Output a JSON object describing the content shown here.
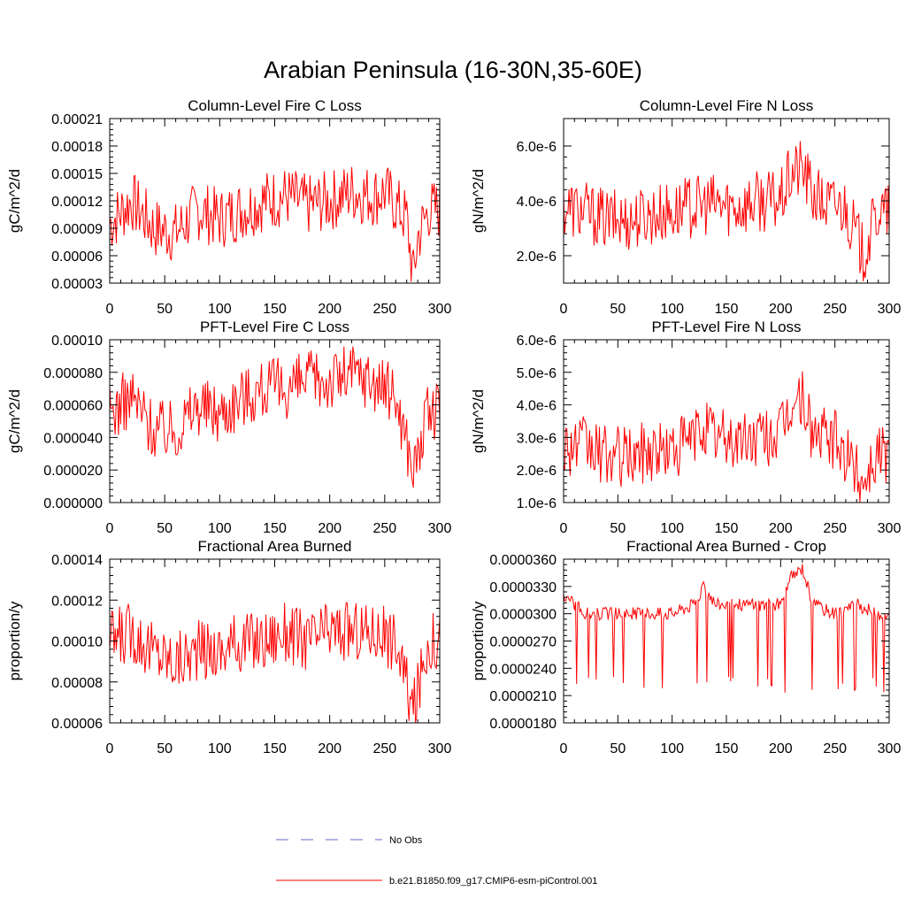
{
  "figure_title": "Arabian Peninsula (16-30N,35-60E)",
  "colors": {
    "series": "#ff0000",
    "no_obs": "#6666cc",
    "axes": "#000000"
  },
  "legend": {
    "items": [
      {
        "label": "No Obs",
        "style": "dashed",
        "color": "#6666cc"
      },
      {
        "label": "b.e21.B1850.f09_g17.CMIP6-esm-piControl.001",
        "style": "solid",
        "color": "#ff0000"
      }
    ]
  },
  "chart_data": [
    {
      "type": "line",
      "title": "Column-Level Fire C Loss",
      "ylabel": "gC/m^2/d",
      "xlim": [
        0,
        300
      ],
      "ylim": [
        3e-05,
        0.00021
      ],
      "xticks": [
        0,
        50,
        100,
        150,
        200,
        250,
        300
      ],
      "xtick_labels": [
        "0",
        "50",
        "100",
        "150",
        "200",
        "250",
        "300"
      ],
      "yticks": [
        3e-05,
        6e-05,
        9e-05,
        0.00012,
        0.00015,
        0.00018,
        0.00021
      ],
      "ytick_labels": [
        "0.00003",
        "0.00006",
        "0.00009",
        "0.00012",
        "0.00015",
        "0.00018",
        "0.00021"
      ],
      "series": [
        {
          "name": "b.e21.B1850.f09_g17.CMIP6-esm-piControl.001",
          "x": [
            0,
            20,
            40,
            60,
            80,
            100,
            120,
            140,
            160,
            180,
            200,
            220,
            240,
            250,
            260,
            270,
            276,
            280,
            290,
            300
          ],
          "values": [
            9.5e-05,
            0.00012,
            9e-05,
            8.5e-05,
            0.00011,
            0.0001,
            0.00011,
            0.00012,
            0.000125,
            0.000115,
            0.00012,
            0.00013,
            0.000125,
            0.00013,
            0.000115,
            0.0001,
            3.5e-05,
            8e-05,
            0.00011,
            0.00011
          ]
        }
      ]
    },
    {
      "type": "line",
      "title": "Column-Level Fire N Loss",
      "ylabel": "gN/m^2/d",
      "xlim": [
        0,
        300
      ],
      "ylim": [
        1e-06,
        7e-06
      ],
      "xticks": [
        0,
        50,
        100,
        150,
        200,
        250,
        300
      ],
      "xtick_labels": [
        "0",
        "50",
        "100",
        "150",
        "200",
        "250",
        "300"
      ],
      "yticks": [
        2e-06,
        4e-06,
        6e-06
      ],
      "ytick_labels": [
        "2.0e-6",
        "4.0e-6",
        "6.0e-6"
      ],
      "series": [
        {
          "name": "b.e21.B1850.f09_g17.CMIP6-esm-piControl.001",
          "x": [
            0,
            20,
            40,
            60,
            80,
            100,
            120,
            140,
            160,
            180,
            200,
            210,
            220,
            230,
            240,
            260,
            276,
            290,
            300
          ],
          "values": [
            3.8e-06,
            3.6e-06,
            3.3e-06,
            3.3e-06,
            3.5e-06,
            3.6e-06,
            3.8e-06,
            3.9e-06,
            3.8e-06,
            4e-06,
            4e-06,
            5e-06,
            5.2e-06,
            4.2e-06,
            3.9e-06,
            3.8e-06,
            2e-06,
            3.6e-06,
            3.5e-06
          ]
        }
      ]
    },
    {
      "type": "line",
      "title": "PFT-Level Fire C Loss",
      "ylabel": "gC/m^2/d",
      "xlim": [
        0,
        300
      ],
      "ylim": [
        0.0,
        0.0001
      ],
      "xticks": [
        0,
        50,
        100,
        150,
        200,
        250,
        300
      ],
      "xtick_labels": [
        "0",
        "50",
        "100",
        "150",
        "200",
        "250",
        "300"
      ],
      "yticks": [
        0.0,
        2e-05,
        4e-05,
        6e-05,
        8e-05,
        0.0001
      ],
      "ytick_labels": [
        "0.000000",
        "0.000020",
        "0.000040",
        "0.000060",
        "0.000080",
        "0.00010"
      ],
      "series": [
        {
          "name": "b.e21.B1850.f09_g17.CMIP6-esm-piControl.001",
          "x": [
            0,
            20,
            40,
            60,
            80,
            100,
            120,
            140,
            160,
            180,
            200,
            220,
            240,
            260,
            276,
            290,
            300
          ],
          "values": [
            5.5e-05,
            6.5e-05,
            4.5e-05,
            4.5e-05,
            6e-05,
            5.5e-05,
            6.5e-05,
            7e-05,
            7e-05,
            7.5e-05,
            7.5e-05,
            8e-05,
            7.5e-05,
            6.5e-05,
            2e-05,
            5.5e-05,
            5.5e-05
          ]
        }
      ]
    },
    {
      "type": "line",
      "title": "PFT-Level Fire N Loss",
      "ylabel": "gN/m^2/d",
      "xlim": [
        0,
        300
      ],
      "ylim": [
        1e-06,
        6e-06
      ],
      "xticks": [
        0,
        50,
        100,
        150,
        200,
        250,
        300
      ],
      "xtick_labels": [
        "0",
        "50",
        "100",
        "150",
        "200",
        "250",
        "300"
      ],
      "yticks": [
        1e-06,
        2e-06,
        3e-06,
        4e-06,
        5e-06,
        6e-06
      ],
      "ytick_labels": [
        "1.0e-6",
        "2.0e-6",
        "3.0e-6",
        "4.0e-6",
        "5.0e-6",
        "6.0e-6"
      ],
      "series": [
        {
          "name": "b.e21.B1850.f09_g17.CMIP6-esm-piControl.001",
          "x": [
            0,
            20,
            40,
            60,
            80,
            100,
            120,
            130,
            140,
            160,
            180,
            200,
            210,
            220,
            230,
            250,
            276,
            290,
            300
          ],
          "values": [
            2.8e-06,
            2.7e-06,
            2.4e-06,
            2.4e-06,
            2.6e-06,
            2.6e-06,
            3e-06,
            3.4e-06,
            3e-06,
            2.9e-06,
            3e-06,
            3.1e-06,
            4e-06,
            4.2e-06,
            3.1e-06,
            2.9e-06,
            1.7e-06,
            2.6e-06,
            2.5e-06
          ]
        }
      ]
    },
    {
      "type": "line",
      "title": "Fractional Area Burned",
      "ylabel": "proportion/y",
      "xlim": [
        0,
        300
      ],
      "ylim": [
        6e-05,
        0.00014
      ],
      "xticks": [
        0,
        50,
        100,
        150,
        200,
        250,
        300
      ],
      "xtick_labels": [
        "0",
        "50",
        "100",
        "150",
        "200",
        "250",
        "300"
      ],
      "yticks": [
        6e-05,
        8e-05,
        0.0001,
        0.00012,
        0.00014
      ],
      "ytick_labels": [
        "0.00006",
        "0.00008",
        "0.00010",
        "0.00012",
        "0.00014"
      ],
      "series": [
        {
          "name": "b.e21.B1850.f09_g17.CMIP6-esm-piControl.001",
          "x": [
            0,
            20,
            40,
            60,
            80,
            100,
            120,
            140,
            160,
            180,
            200,
            220,
            240,
            260,
            276,
            290,
            300
          ],
          "values": [
            0.0001,
            0.000105,
            9.5e-05,
            9e-05,
            9.5e-05,
            9.5e-05,
            0.0001,
            0.0001,
            0.000105,
            0.0001,
            0.000105,
            0.000105,
            0.000105,
            0.0001,
            6.5e-05,
            0.0001,
            0.0001
          ]
        }
      ]
    },
    {
      "type": "line",
      "title": "Fractional Area Burned - Crop",
      "ylabel": "proportion/y",
      "xlim": [
        0,
        300
      ],
      "ylim": [
        1.8e-05,
        3.6e-05
      ],
      "xticks": [
        0,
        50,
        100,
        150,
        200,
        250,
        300
      ],
      "xtick_labels": [
        "0",
        "50",
        "100",
        "150",
        "200",
        "250",
        "300"
      ],
      "yticks": [
        1.8e-05,
        2.1e-05,
        2.4e-05,
        2.7e-05,
        3e-05,
        3.3e-05,
        3.6e-05
      ],
      "ytick_labels": [
        "0.0000180",
        "0.0000210",
        "0.0000240",
        "0.0000270",
        "0.0000300",
        "0.0000330",
        "0.0000360"
      ],
      "series": [
        {
          "name": "b.e21.B1850.f09_g17.CMIP6-esm-piControl.001",
          "x": [
            0,
            10,
            20,
            40,
            60,
            80,
            100,
            120,
            130,
            140,
            160,
            180,
            200,
            210,
            220,
            230,
            250,
            270,
            290,
            300
          ],
          "values": [
            3.2e-05,
            3.1e-05,
            3e-05,
            3e-05,
            3e-05,
            3e-05,
            3e-05,
            3.1e-05,
            3.3e-05,
            3.1e-05,
            3.1e-05,
            3.1e-05,
            3.1e-05,
            3.4e-05,
            3.5e-05,
            3.1e-05,
            3e-05,
            3.1e-05,
            3e-05,
            3e-05
          ]
        }
      ]
    }
  ]
}
